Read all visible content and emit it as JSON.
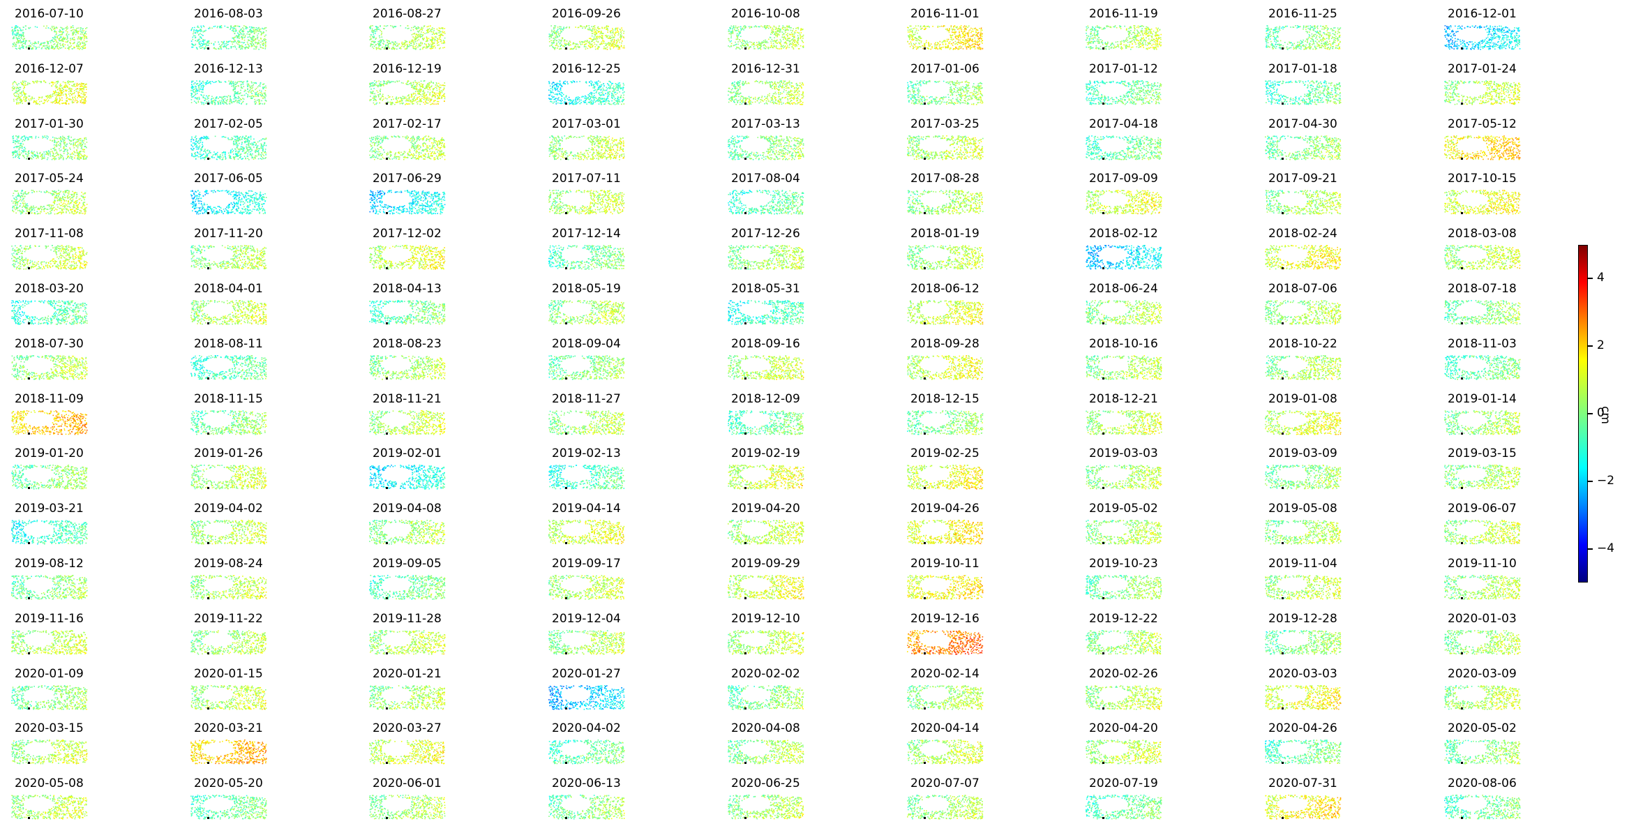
{
  "figure": {
    "colorbar_label": "cm",
    "colorbar_ticks": [
      "4",
      "2",
      "0",
      "−2",
      "−4"
    ],
    "colormap": [
      "#00007f",
      "#0000ff",
      "#007fff",
      "#00ffff",
      "#7fff7f",
      "#ffff00",
      "#ff7f00",
      "#ff0000",
      "#7f0000"
    ]
  },
  "chart_data": {
    "type": "heatmap",
    "title": "",
    "colorbar": {
      "label": "cm",
      "vmin": -5,
      "vmax": 5,
      "ticks": [
        4,
        2,
        0,
        -2,
        -4
      ],
      "colormap": "jet"
    },
    "layout": {
      "rows": 15,
      "columns": 9
    },
    "panels": [
      {
        "date": "2016-07-10",
        "mean": 0.0
      },
      {
        "date": "2016-08-03",
        "mean": -0.3
      },
      {
        "date": "2016-08-27",
        "mean": 0.3
      },
      {
        "date": "2016-09-26",
        "mean": 0.5
      },
      {
        "date": "2016-10-08",
        "mean": 0.3
      },
      {
        "date": "2016-11-01",
        "mean": 1.2
      },
      {
        "date": "2016-11-19",
        "mean": 0.3
      },
      {
        "date": "2016-11-25",
        "mean": 0.0
      },
      {
        "date": "2016-12-01",
        "mean": -1.6
      },
      {
        "date": "2016-12-07",
        "mean": 0.8
      },
      {
        "date": "2016-12-13",
        "mean": -0.3
      },
      {
        "date": "2016-12-19",
        "mean": 0.5
      },
      {
        "date": "2016-12-25",
        "mean": -1.0
      },
      {
        "date": "2016-12-31",
        "mean": 0.3
      },
      {
        "date": "2017-01-06",
        "mean": 0.0
      },
      {
        "date": "2017-01-12",
        "mean": -0.3
      },
      {
        "date": "2017-01-18",
        "mean": -0.5
      },
      {
        "date": "2017-01-24",
        "mean": 0.5
      },
      {
        "date": "2017-01-30",
        "mean": 0.0
      },
      {
        "date": "2017-02-05",
        "mean": -0.6
      },
      {
        "date": "2017-02-17",
        "mean": 0.3
      },
      {
        "date": "2017-03-01",
        "mean": 0.5
      },
      {
        "date": "2017-03-13",
        "mean": 0.0
      },
      {
        "date": "2017-03-25",
        "mean": 0.5
      },
      {
        "date": "2017-04-18",
        "mean": -0.3
      },
      {
        "date": "2017-04-30",
        "mean": 0.0
      },
      {
        "date": "2017-05-12",
        "mean": 1.5
      },
      {
        "date": "2017-05-24",
        "mean": 0.3
      },
      {
        "date": "2017-06-05",
        "mean": -1.2
      },
      {
        "date": "2017-06-29",
        "mean": -1.4
      },
      {
        "date": "2017-07-11",
        "mean": 0.5
      },
      {
        "date": "2017-08-04",
        "mean": -0.5
      },
      {
        "date": "2017-08-28",
        "mean": 0.3
      },
      {
        "date": "2017-09-09",
        "mean": 0.8
      },
      {
        "date": "2017-09-21",
        "mean": 0.3
      },
      {
        "date": "2017-10-15",
        "mean": 1.0
      },
      {
        "date": "2017-11-08",
        "mean": 0.5
      },
      {
        "date": "2017-11-20",
        "mean": 0.3
      },
      {
        "date": "2017-12-02",
        "mean": 0.8
      },
      {
        "date": "2017-12-14",
        "mean": -0.3
      },
      {
        "date": "2017-12-26",
        "mean": 0.3
      },
      {
        "date": "2018-01-19",
        "mean": 0.3
      },
      {
        "date": "2018-02-12",
        "mean": -1.6
      },
      {
        "date": "2018-02-24",
        "mean": 1.0
      },
      {
        "date": "2018-03-08",
        "mean": 0.5
      },
      {
        "date": "2018-03-20",
        "mean": -0.6
      },
      {
        "date": "2018-04-01",
        "mean": 0.5
      },
      {
        "date": "2018-04-13",
        "mean": -0.3
      },
      {
        "date": "2018-05-19",
        "mean": 0.3
      },
      {
        "date": "2018-05-31",
        "mean": -0.8
      },
      {
        "date": "2018-06-12",
        "mean": 0.8
      },
      {
        "date": "2018-06-24",
        "mean": 0.3
      },
      {
        "date": "2018-07-06",
        "mean": 0.3
      },
      {
        "date": "2018-07-18",
        "mean": 0.0
      },
      {
        "date": "2018-07-30",
        "mean": 0.3
      },
      {
        "date": "2018-08-11",
        "mean": -0.5
      },
      {
        "date": "2018-08-23",
        "mean": 0.3
      },
      {
        "date": "2018-09-04",
        "mean": 0.0
      },
      {
        "date": "2018-09-16",
        "mean": 0.5
      },
      {
        "date": "2018-09-28",
        "mean": 0.8
      },
      {
        "date": "2018-10-16",
        "mean": 0.3
      },
      {
        "date": "2018-10-22",
        "mean": 0.3
      },
      {
        "date": "2018-11-03",
        "mean": -0.3
      },
      {
        "date": "2018-11-09",
        "mean": 1.8
      },
      {
        "date": "2018-11-15",
        "mean": 0.0
      },
      {
        "date": "2018-11-21",
        "mean": 0.5
      },
      {
        "date": "2018-11-27",
        "mean": 0.3
      },
      {
        "date": "2018-12-09",
        "mean": -0.3
      },
      {
        "date": "2018-12-15",
        "mean": 0.0
      },
      {
        "date": "2018-12-21",
        "mean": 0.5
      },
      {
        "date": "2019-01-08",
        "mean": 0.8
      },
      {
        "date": "2019-01-14",
        "mean": 0.3
      },
      {
        "date": "2019-01-20",
        "mean": 0.0
      },
      {
        "date": "2019-01-26",
        "mean": 0.5
      },
      {
        "date": "2019-02-01",
        "mean": -1.2
      },
      {
        "date": "2019-02-13",
        "mean": -0.6
      },
      {
        "date": "2019-02-19",
        "mean": 0.8
      },
      {
        "date": "2019-02-25",
        "mean": 1.0
      },
      {
        "date": "2019-03-03",
        "mean": 0.3
      },
      {
        "date": "2019-03-09",
        "mean": 0.0
      },
      {
        "date": "2019-03-15",
        "mean": 0.3
      },
      {
        "date": "2019-03-21",
        "mean": -0.8
      },
      {
        "date": "2019-04-02",
        "mean": 0.5
      },
      {
        "date": "2019-04-08",
        "mean": 0.3
      },
      {
        "date": "2019-04-14",
        "mean": 0.8
      },
      {
        "date": "2019-04-20",
        "mean": 0.5
      },
      {
        "date": "2019-04-26",
        "mean": 1.2
      },
      {
        "date": "2019-05-02",
        "mean": 0.3
      },
      {
        "date": "2019-05-08",
        "mean": 0.3
      },
      {
        "date": "2019-06-07",
        "mean": 0.5
      },
      {
        "date": "2019-08-12",
        "mean": 0.0
      },
      {
        "date": "2019-08-24",
        "mean": 0.5
      },
      {
        "date": "2019-09-05",
        "mean": -0.3
      },
      {
        "date": "2019-09-17",
        "mean": 0.5
      },
      {
        "date": "2019-09-29",
        "mean": 0.8
      },
      {
        "date": "2019-10-11",
        "mean": 1.2
      },
      {
        "date": "2019-10-23",
        "mean": 0.0
      },
      {
        "date": "2019-11-04",
        "mean": 0.5
      },
      {
        "date": "2019-11-10",
        "mean": 0.3
      },
      {
        "date": "2019-11-16",
        "mean": 0.5
      },
      {
        "date": "2019-11-22",
        "mean": 0.3
      },
      {
        "date": "2019-11-28",
        "mean": 0.5
      },
      {
        "date": "2019-12-04",
        "mean": 0.3
      },
      {
        "date": "2019-12-10",
        "mean": 0.5
      },
      {
        "date": "2019-12-16",
        "mean": 2.5
      },
      {
        "date": "2019-12-22",
        "mean": 0.3
      },
      {
        "date": "2019-12-28",
        "mean": 0.0
      },
      {
        "date": "2020-01-03",
        "mean": 0.3
      },
      {
        "date": "2020-01-09",
        "mean": 0.0
      },
      {
        "date": "2020-01-15",
        "mean": 0.5
      },
      {
        "date": "2020-01-21",
        "mean": 0.3
      },
      {
        "date": "2020-01-27",
        "mean": -1.8
      },
      {
        "date": "2020-02-02",
        "mean": 0.0
      },
      {
        "date": "2020-02-14",
        "mean": 0.3
      },
      {
        "date": "2020-02-26",
        "mean": 0.5
      },
      {
        "date": "2020-03-03",
        "mean": 1.0
      },
      {
        "date": "2020-03-09",
        "mean": 0.5
      },
      {
        "date": "2020-03-15",
        "mean": 0.5
      },
      {
        "date": "2020-03-21",
        "mean": 1.8
      },
      {
        "date": "2020-03-27",
        "mean": 0.8
      },
      {
        "date": "2020-04-02",
        "mean": -0.3
      },
      {
        "date": "2020-04-08",
        "mean": 0.3
      },
      {
        "date": "2020-04-14",
        "mean": 0.5
      },
      {
        "date": "2020-04-20",
        "mean": 0.5
      },
      {
        "date": "2020-04-26",
        "mean": -0.3
      },
      {
        "date": "2020-05-02",
        "mean": 0.0
      },
      {
        "date": "2020-05-08",
        "mean": 0.5
      },
      {
        "date": "2020-05-20",
        "mean": -0.3
      },
      {
        "date": "2020-06-01",
        "mean": 0.3
      },
      {
        "date": "2020-06-13",
        "mean": 0.0
      },
      {
        "date": "2020-06-25",
        "mean": 0.3
      },
      {
        "date": "2020-07-07",
        "mean": 0.3
      },
      {
        "date": "2020-07-19",
        "mean": -0.3
      },
      {
        "date": "2020-07-31",
        "mean": 1.2
      },
      {
        "date": "2020-08-06",
        "mean": -0.3
      }
    ]
  }
}
